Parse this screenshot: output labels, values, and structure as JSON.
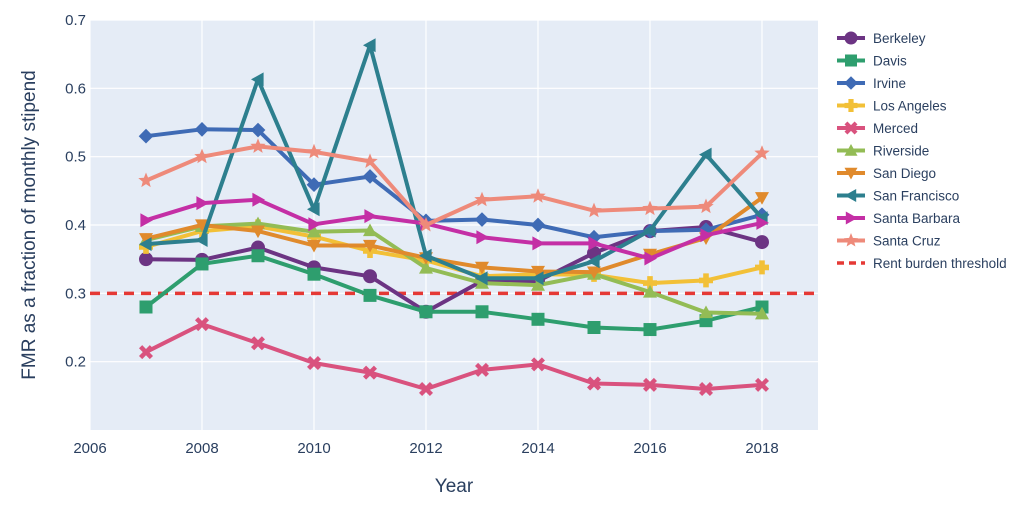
{
  "chart_data": {
    "type": "line",
    "xlabel": "Year",
    "ylabel": "FMR as a fraction of monthly stipend",
    "xlim": [
      2006,
      2019
    ],
    "ylim": [
      0.1,
      0.7
    ],
    "x_ticks": [
      2006,
      2008,
      2010,
      2012,
      2014,
      2016,
      2018
    ],
    "y_ticks": [
      0.2,
      0.3,
      0.4,
      0.5,
      0.6,
      0.7
    ],
    "x_tick_labels": [
      "2006",
      "2008",
      "2010",
      "2012",
      "2014",
      "2016",
      "2018"
    ],
    "y_tick_labels": [
      "0.2",
      "0.3",
      "0.4",
      "0.5",
      "0.6",
      "0.7"
    ],
    "grid": true,
    "background": "#e5ecf6",
    "legend_position": "right",
    "x": [
      2007,
      2008,
      2009,
      2010,
      2011,
      2012,
      2013,
      2014,
      2015,
      2016,
      2017,
      2018
    ],
    "series": [
      {
        "name": "Berkeley",
        "color": "#6c3483",
        "marker": "circle",
        "values": [
          0.35,
          0.349,
          0.367,
          0.338,
          0.325,
          0.273,
          0.318,
          0.318,
          0.359,
          0.391,
          0.397,
          0.375
        ]
      },
      {
        "name": "Davis",
        "color": "#2e9e6e",
        "marker": "square",
        "values": [
          0.28,
          0.343,
          0.355,
          0.328,
          0.297,
          0.273,
          0.273,
          0.262,
          0.25,
          0.247,
          0.26,
          0.28
        ]
      },
      {
        "name": "Irvine",
        "color": "#3f6bb5",
        "marker": "diamond",
        "values": [
          0.53,
          0.54,
          0.539,
          0.459,
          0.471,
          0.406,
          0.408,
          0.4,
          0.382,
          0.391,
          0.393,
          0.415
        ]
      },
      {
        "name": "Los Angeles",
        "color": "#f2c037",
        "marker": "cross",
        "values": [
          0.368,
          0.391,
          0.398,
          0.383,
          0.362,
          0.348,
          0.325,
          0.328,
          0.327,
          0.315,
          0.319,
          0.338
        ]
      },
      {
        "name": "Merced",
        "color": "#d9527e",
        "marker": "x",
        "values": [
          0.214,
          0.255,
          0.227,
          0.198,
          0.184,
          0.16,
          0.188,
          0.196,
          0.168,
          0.166,
          0.16,
          0.166
        ]
      },
      {
        "name": "Riverside",
        "color": "#93bc55",
        "marker": "triangle-up",
        "values": [
          0.378,
          0.398,
          0.402,
          0.39,
          0.392,
          0.337,
          0.315,
          0.312,
          0.328,
          0.302,
          0.272,
          0.27
        ]
      },
      {
        "name": "San Diego",
        "color": "#e08a2c",
        "marker": "triangle-down",
        "values": [
          0.38,
          0.4,
          0.391,
          0.37,
          0.37,
          0.352,
          0.338,
          0.332,
          0.331,
          0.357,
          0.381,
          0.44
        ]
      },
      {
        "name": "San Francisco",
        "color": "#2d7f8e",
        "marker": "triangle-left",
        "values": [
          0.372,
          0.378,
          0.613,
          0.423,
          0.663,
          0.355,
          0.322,
          0.322,
          0.347,
          0.392,
          0.503,
          0.41
        ]
      },
      {
        "name": "Santa Barbara",
        "color": "#c42fa5",
        "marker": "triangle-right",
        "values": [
          0.407,
          0.432,
          0.437,
          0.401,
          0.413,
          0.402,
          0.382,
          0.373,
          0.373,
          0.351,
          0.385,
          0.403
        ]
      },
      {
        "name": "Santa Cruz",
        "color": "#ee8a7a",
        "marker": "star",
        "values": [
          0.465,
          0.5,
          0.515,
          0.507,
          0.493,
          0.4,
          0.437,
          0.442,
          0.421,
          0.424,
          0.427,
          0.505
        ]
      }
    ],
    "threshold": {
      "name": "Rent burden threshold",
      "value": 0.3,
      "color": "#e53935",
      "style": "dashed"
    }
  }
}
